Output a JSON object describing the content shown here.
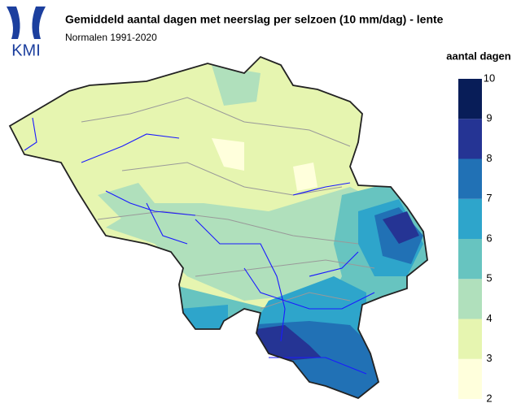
{
  "header": {
    "logo_text": "KMI",
    "title": "Gemiddeld aantal dagen met neerslag per selzoen (10 mm/dag) - lente",
    "subtitle": "Normalen 1991-2020"
  },
  "legend": {
    "title": "aantal dagen",
    "ticks": [
      2,
      3,
      4,
      5,
      6,
      7,
      8,
      9,
      10
    ],
    "colors": [
      "#ffffdc",
      "#e6f5b0",
      "#b0e0bc",
      "#67c4c0",
      "#2ea5cb",
      "#2171b5",
      "#253494",
      "#081d58"
    ]
  }
}
